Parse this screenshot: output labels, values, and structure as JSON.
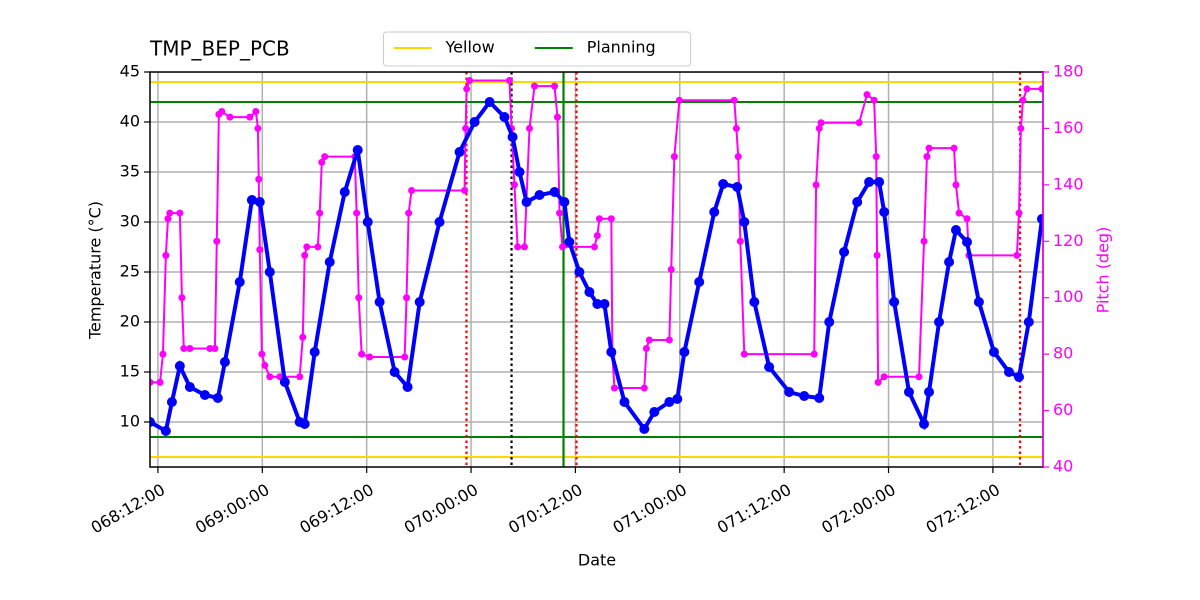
{
  "chart_data": {
    "type": "line",
    "title": "TMP_BEP_PCB",
    "xlabel": "Date",
    "ylabel": "Temperature (°C)",
    "y2label": "Pitch (deg)",
    "xlim": [
      68.462,
      72.74
    ],
    "xticks": [
      {
        "value": 68.5,
        "label": "068:12:00"
      },
      {
        "value": 69.0,
        "label": "069:00:00"
      },
      {
        "value": 69.5,
        "label": "069:12:00"
      },
      {
        "value": 70.0,
        "label": "070:00:00"
      },
      {
        "value": 70.5,
        "label": "070:12:00"
      },
      {
        "value": 71.0,
        "label": "071:00:00"
      },
      {
        "value": 71.5,
        "label": "071:12:00"
      },
      {
        "value": 72.0,
        "label": "072:00:00"
      },
      {
        "value": 72.5,
        "label": "072:12:00"
      }
    ],
    "ylim": [
      5.5,
      45
    ],
    "yticks": [
      10,
      15,
      20,
      25,
      30,
      35,
      40,
      45
    ],
    "y2lim": [
      40,
      180
    ],
    "y2ticks": [
      40,
      60,
      80,
      100,
      120,
      140,
      160,
      180
    ],
    "grid": true,
    "legend": "upper center",
    "series": [
      {
        "color": "#ff00ff",
        "axis": "y2",
        "x": [
          68.462,
          68.51,
          68.524,
          68.538,
          68.548,
          68.557,
          68.605,
          68.615,
          68.624,
          68.653,
          68.749,
          68.773,
          68.782,
          68.792,
          68.806,
          68.845,
          68.94,
          68.969,
          68.979,
          68.983,
          68.988,
          68.998,
          69.012,
          69.036,
          69.084,
          69.179,
          69.194,
          69.203,
          69.213,
          69.266,
          69.275,
          69.285,
          69.299,
          69.443,
          69.452,
          69.462,
          69.476,
          69.514,
          69.682,
          69.691,
          69.701,
          69.715,
          69.969,
          69.974,
          69.979,
          69.993,
          70.184,
          70.194,
          70.208,
          70.223,
          70.256,
          70.28,
          70.304,
          70.4,
          70.414,
          70.424,
          70.438,
          70.591,
          70.605,
          70.615,
          70.672,
          70.677,
          70.687,
          70.83,
          70.84,
          70.854,
          70.95,
          70.959,
          70.974,
          70.998,
          71.261,
          71.271,
          71.28,
          71.29,
          71.309,
          71.644,
          71.653,
          71.668,
          71.677,
          71.859,
          71.897,
          71.931,
          71.941,
          71.945,
          71.95,
          71.979,
          72.146,
          72.17,
          72.184,
          72.194,
          72.314,
          72.323,
          72.338,
          72.376,
          72.385,
          72.615,
          72.625,
          72.634,
          72.644,
          72.663,
          72.735
        ],
        "values": [
          70,
          70,
          80,
          115,
          128,
          130,
          130,
          100,
          82,
          82,
          82,
          82,
          120,
          165,
          166,
          164,
          164,
          166,
          160,
          142,
          117,
          80,
          76,
          72,
          72,
          72,
          86,
          115,
          118,
          118,
          130,
          148,
          150,
          150,
          130,
          100,
          80,
          79,
          79,
          100,
          130,
          138,
          138,
          160,
          174,
          177,
          177,
          160,
          140,
          118,
          118,
          160,
          175,
          175,
          164,
          130,
          118,
          118,
          122,
          128,
          128,
          80,
          68,
          68,
          82,
          85,
          85,
          110,
          150,
          170,
          170,
          160,
          150,
          120,
          80,
          80,
          140,
          160,
          162,
          162,
          172,
          170,
          150,
          115,
          70,
          72,
          72,
          120,
          150,
          153,
          153,
          140,
          130,
          128,
          115,
          115,
          130,
          160,
          170,
          174,
          174
        ]
      },
      {
        "color": "#0000ff",
        "x": [
          68.462,
          68.538,
          68.567,
          68.605,
          68.653,
          68.725,
          68.787,
          68.821,
          68.892,
          68.95,
          68.988,
          69.036,
          69.108,
          69.179,
          69.203,
          69.251,
          69.323,
          69.395,
          69.457,
          69.505,
          69.562,
          69.634,
          69.696,
          69.754,
          69.849,
          69.945,
          70.017,
          70.089,
          70.16,
          70.199,
          70.232,
          70.266,
          70.328,
          70.4,
          70.447,
          70.471,
          70.519,
          70.567,
          70.605,
          70.639,
          70.672,
          70.735,
          70.83,
          70.878,
          70.95,
          70.988,
          71.022,
          71.093,
          71.165,
          71.208,
          71.275,
          71.309,
          71.357,
          71.428,
          71.524,
          71.596,
          71.668,
          71.716,
          71.787,
          71.85,
          71.907,
          71.955,
          71.979,
          72.027,
          72.098,
          72.17,
          72.194,
          72.242,
          72.29,
          72.323,
          72.376,
          72.433,
          72.505,
          72.577,
          72.625,
          72.672,
          72.735
        ],
        "values": [
          10,
          9.1,
          12,
          15.6,
          13.5,
          12.7,
          12.4,
          16,
          24,
          32.2,
          32,
          25,
          14,
          10,
          9.8,
          17,
          26,
          33,
          37.2,
          30,
          22,
          15,
          13.5,
          22,
          30,
          37,
          40,
          42,
          40.5,
          38.5,
          35,
          32,
          32.7,
          33,
          32,
          28,
          25,
          23,
          21.8,
          21.8,
          17,
          12,
          9.3,
          11,
          12,
          12.3,
          17,
          24,
          31,
          33.8,
          33.5,
          30,
          22,
          15.5,
          13,
          12.6,
          12.4,
          20,
          27,
          32,
          34,
          34,
          31,
          22,
          13,
          9.8,
          13,
          20,
          26,
          29.2,
          28,
          22,
          17,
          15,
          14.5,
          20,
          30.3
        ]
      }
    ],
    "hlines": [
      {
        "name": "Yellow",
        "color": "#ffd700",
        "values": [
          44,
          6.5
        ]
      },
      {
        "name": "Planning",
        "color": "#008000",
        "values": [
          42,
          8.5
        ]
      }
    ],
    "vlines": [
      {
        "x": 69.978,
        "color": "#ff0000",
        "style": "dotted"
      },
      {
        "x": 70.194,
        "color": "#000000",
        "style": "dotted"
      },
      {
        "x": 70.443,
        "color": "#008000",
        "style": "solid"
      },
      {
        "x": 70.505,
        "color": "#ff0000",
        "style": "dotted"
      },
      {
        "x": 72.63,
        "color": "#ff0000",
        "style": "dotted"
      }
    ]
  }
}
